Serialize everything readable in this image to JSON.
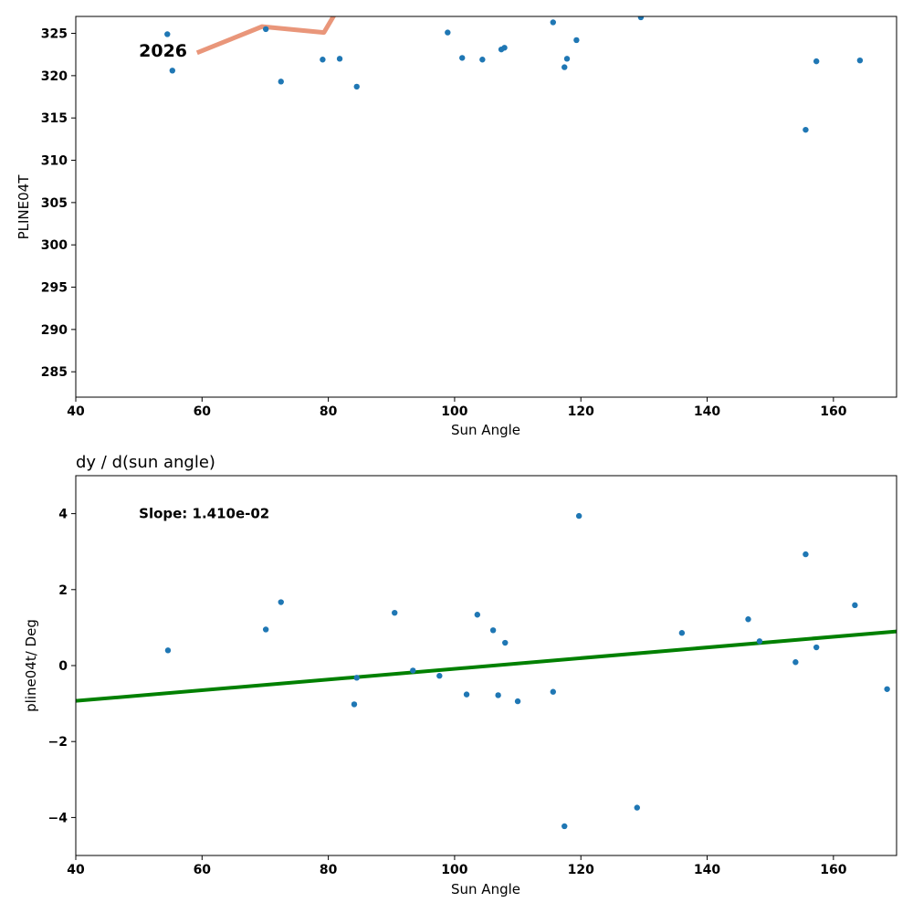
{
  "chart_data": [
    {
      "type": "scatter",
      "title": "",
      "xlabel": "Sun Angle",
      "ylabel": "PLINE04T",
      "xlim": [
        40,
        170
      ],
      "ylim": [
        282,
        327
      ],
      "xticks": [
        40,
        60,
        80,
        100,
        120,
        140,
        160
      ],
      "yticks": [
        285,
        290,
        295,
        300,
        305,
        310,
        315,
        320,
        325
      ],
      "point_color": "#1f77b4",
      "points": [
        {
          "x": 54.5,
          "y": 324.9
        },
        {
          "x": 55.3,
          "y": 320.6
        },
        {
          "x": 70.1,
          "y": 325.5
        },
        {
          "x": 72.5,
          "y": 319.3
        },
        {
          "x": 79.1,
          "y": 321.9
        },
        {
          "x": 81.8,
          "y": 322.0
        },
        {
          "x": 84.5,
          "y": 318.7
        },
        {
          "x": 98.9,
          "y": 325.1
        },
        {
          "x": 101.2,
          "y": 322.1
        },
        {
          "x": 104.4,
          "y": 321.9
        },
        {
          "x": 107.4,
          "y": 323.1
        },
        {
          "x": 107.9,
          "y": 323.3
        },
        {
          "x": 115.6,
          "y": 326.3
        },
        {
          "x": 117.4,
          "y": 321.0
        },
        {
          "x": 117.8,
          "y": 322.0
        },
        {
          "x": 119.3,
          "y": 324.2
        },
        {
          "x": 129.5,
          "y": 326.9
        },
        {
          "x": 155.6,
          "y": 313.6
        },
        {
          "x": 157.3,
          "y": 321.7
        },
        {
          "x": 164.2,
          "y": 321.8
        }
      ],
      "trend_line": {
        "color": "#e9967a",
        "points": [
          {
            "x": 59.2,
            "y": 322.7
          },
          {
            "x": 69.5,
            "y": 325.8
          },
          {
            "x": 79.3,
            "y": 325.1
          },
          {
            "x": 81.2,
            "y": 327.5
          }
        ]
      },
      "annotations": [
        {
          "text": "2026",
          "x": 50.0,
          "y": 323.0
        }
      ]
    },
    {
      "type": "scatter",
      "title": "dy / d(sun angle)",
      "xlabel": "Sun Angle",
      "ylabel": "pline04t/ Deg",
      "xlim": [
        40,
        170
      ],
      "ylim": [
        -5,
        5
      ],
      "xticks": [
        40,
        60,
        80,
        100,
        120,
        140,
        160
      ],
      "yticks": [
        -4,
        -2,
        0,
        2,
        4
      ],
      "ytick_labels": [
        "−4",
        "−2",
        "0",
        "2",
        "4"
      ],
      "point_color": "#1f77b4",
      "points": [
        {
          "x": 54.6,
          "y": 0.4
        },
        {
          "x": 70.1,
          "y": 0.95
        },
        {
          "x": 72.5,
          "y": 1.67
        },
        {
          "x": 84.1,
          "y": -1.02
        },
        {
          "x": 84.5,
          "y": -0.32
        },
        {
          "x": 90.5,
          "y": 1.39
        },
        {
          "x": 93.4,
          "y": -0.13
        },
        {
          "x": 97.6,
          "y": -0.27
        },
        {
          "x": 101.9,
          "y": -0.76
        },
        {
          "x": 103.6,
          "y": 1.34
        },
        {
          "x": 106.1,
          "y": 0.93
        },
        {
          "x": 106.9,
          "y": -0.78
        },
        {
          "x": 108.0,
          "y": 0.6
        },
        {
          "x": 110.0,
          "y": -0.94
        },
        {
          "x": 115.6,
          "y": -0.69
        },
        {
          "x": 117.4,
          "y": -4.23
        },
        {
          "x": 119.7,
          "y": 3.94
        },
        {
          "x": 128.9,
          "y": -3.74
        },
        {
          "x": 136.0,
          "y": 0.86
        },
        {
          "x": 146.5,
          "y": 1.22
        },
        {
          "x": 148.3,
          "y": 0.64
        },
        {
          "x": 154.0,
          "y": 0.09
        },
        {
          "x": 155.6,
          "y": 2.93
        },
        {
          "x": 157.3,
          "y": 0.48
        },
        {
          "x": 163.4,
          "y": 1.59
        },
        {
          "x": 168.5,
          "y": -0.62
        }
      ],
      "fit_line": {
        "color": "#008000",
        "x0": 40,
        "y0": -0.93,
        "x1": 170,
        "y1": 0.9
      },
      "annotations": [
        {
          "text": "Slope: 1.410e-02",
          "x": 50.0,
          "y": 4.0
        }
      ]
    }
  ]
}
